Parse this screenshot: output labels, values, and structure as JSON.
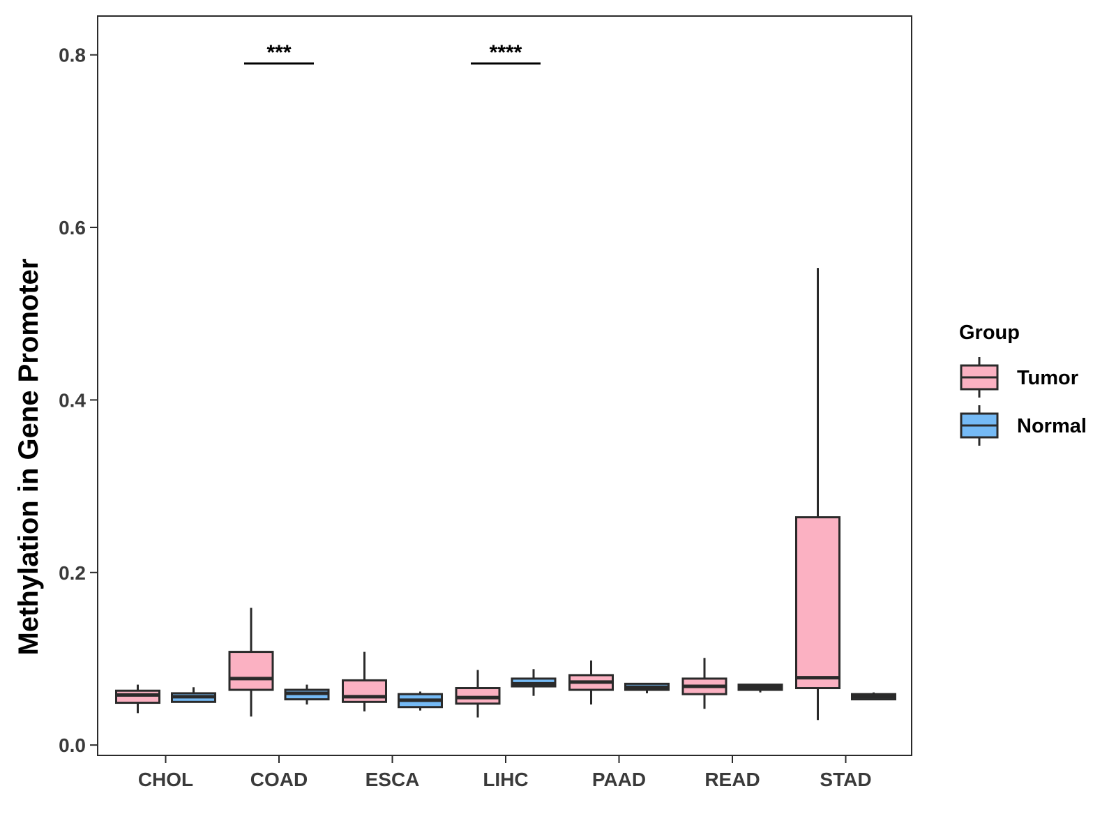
{
  "chart_data": {
    "type": "boxplot",
    "title": "",
    "xlabel": "",
    "ylabel": "Methylation in Gene Promoter",
    "ylim": [
      -0.012,
      0.845
    ],
    "yticks": [
      "0.0",
      "0.2",
      "0.4",
      "0.6",
      "0.8"
    ],
    "ytick_values": [
      0,
      0.2,
      0.4,
      0.6,
      0.8
    ],
    "grid": false,
    "legend_position": "right",
    "categories": [
      "CHOL",
      "COAD",
      "ESCA",
      "LIHC",
      "PAAD",
      "READ",
      "STAD"
    ],
    "legend": {
      "title": "Group",
      "entries": [
        {
          "name": "Tumor",
          "color": "#FBB1C2"
        },
        {
          "name": "Normal",
          "color": "#75BAF5"
        }
      ]
    },
    "colors": {
      "Tumor": "#FBB1C2",
      "Normal": "#75BAF5",
      "outline": "#2a2a2a"
    },
    "series": [
      {
        "name": "Tumor",
        "boxes": [
          {
            "category": "CHOL",
            "whisker_low": 0.037,
            "q1": 0.049,
            "median": 0.058,
            "q3": 0.063,
            "whisker_high": 0.07
          },
          {
            "category": "COAD",
            "whisker_low": 0.033,
            "q1": 0.064,
            "median": 0.077,
            "q3": 0.108,
            "whisker_high": 0.159
          },
          {
            "category": "ESCA",
            "whisker_low": 0.039,
            "q1": 0.05,
            "median": 0.056,
            "q3": 0.075,
            "whisker_high": 0.108
          },
          {
            "category": "LIHC",
            "whisker_low": 0.032,
            "q1": 0.048,
            "median": 0.055,
            "q3": 0.066,
            "whisker_high": 0.087
          },
          {
            "category": "PAAD",
            "whisker_low": 0.047,
            "q1": 0.064,
            "median": 0.073,
            "q3": 0.081,
            "whisker_high": 0.098
          },
          {
            "category": "READ",
            "whisker_low": 0.042,
            "q1": 0.059,
            "median": 0.068,
            "q3": 0.077,
            "whisker_high": 0.101
          },
          {
            "category": "STAD",
            "whisker_low": 0.029,
            "q1": 0.066,
            "median": 0.078,
            "q3": 0.264,
            "whisker_high": 0.553
          }
        ]
      },
      {
        "name": "Normal",
        "boxes": [
          {
            "category": "CHOL",
            "whisker_low": 0.05,
            "q1": 0.05,
            "median": 0.056,
            "q3": 0.06,
            "whisker_high": 0.067
          },
          {
            "category": "COAD",
            "whisker_low": 0.047,
            "q1": 0.053,
            "median": 0.06,
            "q3": 0.064,
            "whisker_high": 0.07
          },
          {
            "category": "ESCA",
            "whisker_low": 0.04,
            "q1": 0.044,
            "median": 0.052,
            "q3": 0.059,
            "whisker_high": 0.062
          },
          {
            "category": "LIHC",
            "whisker_low": 0.057,
            "q1": 0.068,
            "median": 0.071,
            "q3": 0.077,
            "whisker_high": 0.088
          },
          {
            "category": "PAAD",
            "whisker_low": 0.06,
            "q1": 0.064,
            "median": 0.067,
            "q3": 0.071,
            "whisker_high": 0.071
          },
          {
            "category": "READ",
            "whisker_low": 0.061,
            "q1": 0.064,
            "median": 0.067,
            "q3": 0.07,
            "whisker_high": 0.07
          },
          {
            "category": "STAD",
            "whisker_low": 0.052,
            "q1": 0.053,
            "median": 0.056,
            "q3": 0.059,
            "whisker_high": 0.061
          }
        ]
      }
    ],
    "annotations": [
      {
        "category": "COAD",
        "label": "***",
        "y": 0.79
      },
      {
        "category": "LIHC",
        "label": "****",
        "y": 0.79
      }
    ]
  }
}
